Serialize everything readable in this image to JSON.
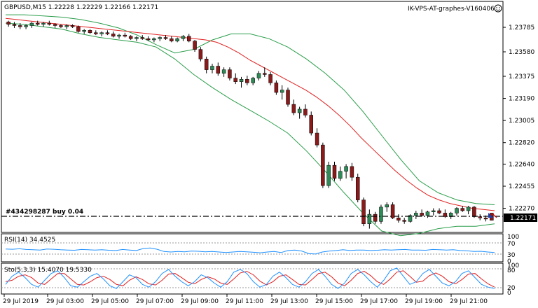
{
  "header": {
    "symbol_info": "GBPUSD,M15  1.22228 1.22229 1.22166 1.22171",
    "account": "IK-VPS-AT-graphes-V160406"
  },
  "order_label": "#434298287 buy 0.04",
  "current_price": "1.22171",
  "price_axis": {
    "ticks": [
      "1.23785",
      "1.23580",
      "1.23375",
      "1.23190",
      "1.23005",
      "1.22820",
      "1.22640",
      "1.22455",
      "1.22270"
    ]
  },
  "rsi": {
    "label": "RSI(14) 34.4525",
    "ticks": [
      "100",
      "70",
      "30",
      "0"
    ]
  },
  "stoch": {
    "label": "Sto(5,3,3) 15.4070 19.5330",
    "ticks": [
      "100",
      "80",
      "20",
      "0"
    ]
  },
  "time_axis": {
    "ticks": [
      "29 Jul 2019",
      "29 Jul 03:00",
      "29 Jul 05:00",
      "29 Jul 07:00",
      "29 Jul 09:00",
      "29 Jul 11:00",
      "29 Jul 13:00",
      "29 Jul 15:00",
      "29 Jul 17:00",
      "29 Jul 19:00",
      "29 Jul 21:00"
    ]
  },
  "colors": {
    "bull": "#2e8b57",
    "bear": "#8b1a1a",
    "ma": "#e02020",
    "bands": "#2a9d4a",
    "rsi_line": "#1e90ff",
    "stoch_main": "#1e90ff",
    "stoch_signal": "#e02020"
  },
  "chart_data": {
    "type": "candlestick",
    "symbol": "GBPUSD",
    "timeframe": "M15",
    "ylim": [
      1.2208,
      1.2392
    ],
    "candles": [
      [
        1.2383,
        1.2384,
        1.2379,
        1.2381
      ],
      [
        1.2381,
        1.2383,
        1.2378,
        1.238
      ],
      [
        1.238,
        1.2382,
        1.2377,
        1.2379
      ],
      [
        1.2379,
        1.2381,
        1.2377,
        1.238
      ],
      [
        1.238,
        1.2383,
        1.2378,
        1.2382
      ],
      [
        1.2382,
        1.2384,
        1.238,
        1.2381
      ],
      [
        1.2381,
        1.2383,
        1.2379,
        1.2382
      ],
      [
        1.2382,
        1.2384,
        1.238,
        1.2381
      ],
      [
        1.2381,
        1.2382,
        1.2378,
        1.238
      ],
      [
        1.238,
        1.2381,
        1.2378,
        1.2379
      ],
      [
        1.2379,
        1.2381,
        1.2377,
        1.238
      ],
      [
        1.238,
        1.2381,
        1.2378,
        1.2379
      ],
      [
        1.2379,
        1.238,
        1.2374,
        1.2375
      ],
      [
        1.2375,
        1.2377,
        1.2373,
        1.2376
      ],
      [
        1.2376,
        1.2377,
        1.2373,
        1.2374
      ],
      [
        1.2374,
        1.2376,
        1.2372,
        1.2373
      ],
      [
        1.2373,
        1.2375,
        1.2371,
        1.2374
      ],
      [
        1.2374,
        1.2376,
        1.2372,
        1.2373
      ],
      [
        1.2373,
        1.2375,
        1.237,
        1.2371
      ],
      [
        1.2371,
        1.2373,
        1.2369,
        1.2372
      ],
      [
        1.2372,
        1.2374,
        1.237,
        1.2371
      ],
      [
        1.2371,
        1.2372,
        1.2368,
        1.2369
      ],
      [
        1.2369,
        1.2371,
        1.2367,
        1.237
      ],
      [
        1.237,
        1.2372,
        1.2368,
        1.2369
      ],
      [
        1.2369,
        1.2371,
        1.2367,
        1.2368
      ],
      [
        1.2368,
        1.237,
        1.2366,
        1.2369
      ],
      [
        1.2369,
        1.2371,
        1.2367,
        1.237
      ],
      [
        1.237,
        1.2372,
        1.2368,
        1.2369
      ],
      [
        1.2369,
        1.2371,
        1.2366,
        1.2367
      ],
      [
        1.2367,
        1.237,
        1.2366,
        1.2369
      ],
      [
        1.2369,
        1.2372,
        1.2367,
        1.2371
      ],
      [
        1.2371,
        1.2373,
        1.2366,
        1.2367
      ],
      [
        1.2367,
        1.2368,
        1.2358,
        1.236
      ],
      [
        1.236,
        1.2362,
        1.235,
        1.2352
      ],
      [
        1.2352,
        1.2354,
        1.234,
        1.2343
      ],
      [
        1.2343,
        1.2348,
        1.234,
        1.2346
      ],
      [
        1.2346,
        1.2349,
        1.2338,
        1.234
      ],
      [
        1.234,
        1.2345,
        1.2337,
        1.2343
      ],
      [
        1.2343,
        1.2345,
        1.2334,
        1.2336
      ],
      [
        1.2336,
        1.234,
        1.2331,
        1.2333
      ],
      [
        1.2333,
        1.2337,
        1.2328,
        1.2335
      ],
      [
        1.2335,
        1.2338,
        1.233,
        1.2332
      ],
      [
        1.2332,
        1.2337,
        1.233,
        1.2336
      ],
      [
        1.2336,
        1.2342,
        1.2334,
        1.234
      ],
      [
        1.234,
        1.2345,
        1.2337,
        1.2339
      ],
      [
        1.2339,
        1.2341,
        1.233,
        1.2332
      ],
      [
        1.2332,
        1.2334,
        1.2322,
        1.2324
      ],
      [
        1.2324,
        1.233,
        1.2318,
        1.2326
      ],
      [
        1.2326,
        1.2328,
        1.2312,
        1.2314
      ],
      [
        1.2314,
        1.2318,
        1.2305,
        1.2307
      ],
      [
        1.2307,
        1.2312,
        1.2302,
        1.231
      ],
      [
        1.231,
        1.2314,
        1.2303,
        1.2305
      ],
      [
        1.2305,
        1.2308,
        1.2288,
        1.229
      ],
      [
        1.229,
        1.2294,
        1.2278,
        1.228
      ],
      [
        1.228,
        1.2282,
        1.2244,
        1.2246
      ],
      [
        1.2246,
        1.2266,
        1.2244,
        1.2263
      ],
      [
        1.2263,
        1.2266,
        1.225,
        1.2252
      ],
      [
        1.2252,
        1.2262,
        1.225,
        1.2258
      ],
      [
        1.2258,
        1.2264,
        1.2252,
        1.2262
      ],
      [
        1.2262,
        1.2265,
        1.225,
        1.2253
      ],
      [
        1.2253,
        1.2256,
        1.2232,
        1.2234
      ],
      [
        1.2234,
        1.2236,
        1.2212,
        1.2214
      ],
      [
        1.2214,
        1.2226,
        1.221,
        1.2222
      ],
      [
        1.2222,
        1.2224,
        1.2214,
        1.2216
      ],
      [
        1.2216,
        1.223,
        1.2214,
        1.2228
      ],
      [
        1.2228,
        1.2232,
        1.2224,
        1.223
      ],
      [
        1.223,
        1.2232,
        1.2218,
        1.2219
      ],
      [
        1.2219,
        1.2222,
        1.2215,
        1.2217
      ],
      [
        1.2217,
        1.2219,
        1.2214,
        1.2216
      ],
      [
        1.2216,
        1.2222,
        1.2215,
        1.2221
      ],
      [
        1.2221,
        1.2225,
        1.2218,
        1.2223
      ],
      [
        1.2223,
        1.2226,
        1.222,
        1.2221
      ],
      [
        1.2221,
        1.2225,
        1.2219,
        1.2224
      ],
      [
        1.2224,
        1.2227,
        1.2221,
        1.2225
      ],
      [
        1.2225,
        1.2227,
        1.2222,
        1.2223
      ],
      [
        1.2223,
        1.2226,
        1.2219,
        1.222
      ],
      [
        1.222,
        1.2224,
        1.2218,
        1.2223
      ],
      [
        1.2223,
        1.2228,
        1.2221,
        1.2227
      ],
      [
        1.2227,
        1.2229,
        1.2224,
        1.2225
      ],
      [
        1.2225,
        1.2229,
        1.2222,
        1.2228
      ],
      [
        1.2228,
        1.2229,
        1.2219,
        1.222
      ],
      [
        1.222,
        1.2222,
        1.2217,
        1.2219
      ],
      [
        1.2219,
        1.2221,
        1.2216,
        1.2218
      ],
      [
        1.2223,
        1.2223,
        1.2217,
        1.2217
      ]
    ],
    "moving_average": [
      1.2386,
      1.2385,
      1.2384,
      1.2383,
      1.2382,
      1.2381,
      1.238,
      1.2379,
      1.2378,
      1.2377,
      1.2376,
      1.2375,
      1.2374,
      1.2373,
      1.2372,
      1.2371,
      1.237,
      1.2369,
      1.2368,
      1.2366,
      1.2362,
      1.2357,
      1.2351,
      1.2346,
      1.2341,
      1.2336,
      1.2331,
      1.2326,
      1.232,
      1.2313,
      1.2305,
      1.2296,
      1.2286,
      1.2277,
      1.2268,
      1.2259,
      1.2251,
      1.2244,
      1.2238,
      1.2234,
      1.2231,
      1.2229,
      1.2227,
      1.2226,
      1.2225
    ],
    "band_upper": [
      1.2389,
      1.2389,
      1.2388,
      1.2387,
      1.2385,
      1.2382,
      1.2378,
      1.2372,
      1.2364,
      1.2357,
      1.236,
      1.2368,
      1.2373,
      1.2373,
      1.2369,
      1.2362,
      1.2352,
      1.234,
      1.2326,
      1.2308,
      1.2288,
      1.2268,
      1.225,
      1.224,
      1.2234,
      1.2231,
      1.223
    ],
    "band_lower": [
      1.2382,
      1.2381,
      1.2379,
      1.2377,
      1.2373,
      1.237,
      1.2368,
      1.2366,
      1.2362,
      1.2352,
      1.2339,
      1.2328,
      1.2318,
      1.2309,
      1.23,
      1.229,
      1.2275,
      1.2258,
      1.224,
      1.2223,
      1.2208,
      1.2204,
      1.2206,
      1.221,
      1.2212,
      1.2212,
      1.2214
    ],
    "rsi_values": [
      48,
      47,
      49,
      46,
      45,
      44,
      48,
      47,
      45,
      44,
      43,
      46,
      45,
      44,
      45,
      43,
      42,
      46,
      44,
      42,
      50,
      52,
      47,
      38,
      36,
      38,
      37,
      40,
      39,
      37,
      38,
      36,
      34,
      36,
      38,
      37,
      35,
      33,
      36,
      38,
      34,
      42,
      44,
      40,
      30,
      28,
      36,
      40,
      42,
      45,
      42,
      44,
      44,
      42,
      43,
      45,
      44,
      45,
      46,
      44,
      44,
      43,
      46,
      45,
      44,
      45,
      42,
      41,
      38,
      39,
      36,
      34
    ],
    "stoch_main": [
      30,
      60,
      75,
      55,
      30,
      20,
      45,
      70,
      80,
      55,
      25,
      20,
      40,
      60,
      70,
      50,
      25,
      15,
      40,
      65,
      55,
      30,
      20,
      40,
      70,
      85,
      60,
      40,
      25,
      40,
      65,
      55,
      35,
      20,
      40,
      75,
      85,
      70,
      40,
      20,
      30,
      60,
      75,
      55,
      30,
      20,
      40,
      70,
      85,
      60,
      30,
      15,
      35,
      70,
      85,
      65,
      40,
      20,
      45,
      80,
      90,
      60,
      30,
      40,
      70,
      85,
      60,
      35,
      25,
      40,
      70,
      80,
      55,
      30,
      20,
      15
    ],
    "stoch_signal": [
      40,
      45,
      60,
      65,
      55,
      35,
      30,
      50,
      70,
      70,
      50,
      30,
      28,
      40,
      55,
      60,
      48,
      30,
      25,
      45,
      58,
      48,
      32,
      28,
      45,
      68,
      70,
      55,
      38,
      32,
      48,
      58,
      50,
      35,
      30,
      50,
      72,
      78,
      65,
      42,
      28,
      40,
      60,
      65,
      48,
      30,
      28,
      48,
      70,
      75,
      58,
      35,
      25,
      45,
      70,
      78,
      62,
      40,
      30,
      50,
      75,
      80,
      60,
      38,
      42,
      62,
      72,
      60,
      40,
      32,
      48,
      68,
      70,
      50,
      32,
      20
    ]
  }
}
